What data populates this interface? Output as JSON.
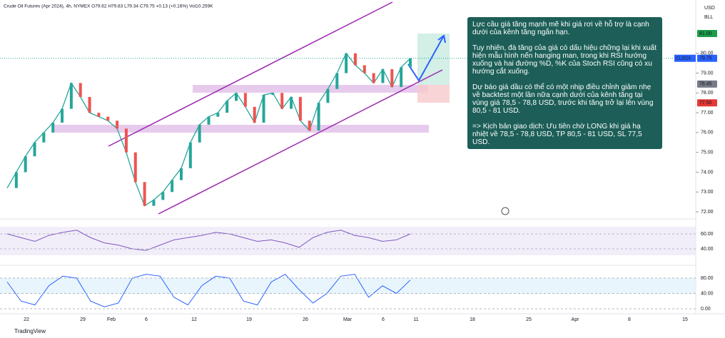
{
  "header": {
    "legend": "Crude Oil Futures (Apr 2024), 4h, NYMEX  O79.62  H79.83  L79.34  C79.75  +0.13 (+0.16%)  Vol10.259K"
  },
  "price_scale": {
    "currency": "USD",
    "unit": "BLL",
    "ticks": [
      {
        "value": 80,
        "label": "80.00"
      },
      {
        "value": 79,
        "label": "79.00"
      },
      {
        "value": 78,
        "label": "78.00"
      },
      {
        "value": 77,
        "label": "77.00"
      },
      {
        "value": 76,
        "label": "76.00"
      },
      {
        "value": 75,
        "label": "75.00"
      },
      {
        "value": 74,
        "label": "74.00"
      },
      {
        "value": 73,
        "label": "73.00"
      },
      {
        "value": 72,
        "label": "72.00"
      }
    ],
    "take_profit": {
      "value": 81,
      "label": "81.00"
    },
    "last": {
      "value": 79.75,
      "label": "79.75",
      "symbol": "CL2024"
    },
    "entry": {
      "value": 78.45,
      "label": "78.45"
    },
    "stop_loss": {
      "value": 77.5,
      "label": "77.50"
    }
  },
  "price": {
    "closes": [
      73.2,
      74.0,
      74.8,
      75.5,
      76.0,
      76.5,
      77.2,
      78.5,
      77.8,
      77.0,
      76.8,
      76.6,
      76.2,
      75.0,
      73.5,
      72.3,
      72.6,
      73.0,
      73.6,
      74.2,
      75.5,
      76.4,
      76.8,
      77.0,
      77.6,
      78.0,
      77.3,
      76.5,
      77.9,
      78.0,
      77.2,
      77.8,
      76.6,
      76.1,
      77.5,
      78.2,
      79.0,
      80.0,
      79.4,
      79.0,
      78.5,
      79.2,
      78.3,
      79.3,
      79.75
    ]
  },
  "rsi": {
    "values": [
      60,
      55,
      50,
      58,
      62,
      65,
      55,
      48,
      45,
      40,
      38,
      45,
      52,
      55,
      58,
      62,
      60,
      55,
      50,
      52,
      48,
      42,
      55,
      62,
      65,
      58,
      55,
      50,
      52,
      60
    ],
    "ticks": [
      {
        "value": 60,
        "label": "60.00"
      },
      {
        "value": 40,
        "label": "40.00"
      }
    ]
  },
  "stoch": {
    "values": [
      70,
      20,
      10,
      60,
      85,
      80,
      20,
      5,
      15,
      80,
      90,
      85,
      30,
      10,
      60,
      85,
      80,
      20,
      10,
      70,
      90,
      50,
      15,
      40,
      85,
      90,
      30,
      60,
      40,
      75
    ],
    "ticks": [
      {
        "value": 80,
        "label": "80.00"
      },
      {
        "value": 40,
        "label": "40.00"
      },
      {
        "value": 0,
        "label": "0.00"
      }
    ]
  },
  "time_axis": [
    "22",
    "29",
    "Feb",
    "6",
    "12",
    "19",
    "26",
    "Mar",
    "6",
    "11",
    "18",
    "25",
    "Apr",
    "8",
    "15"
  ],
  "annotation": [
    "Lực cầu giá tăng mạnh mẽ khi giá rơi về hỗ trợ là cạnh dưới của kênh tăng ngắn hạn.",
    "Tuy nhiên, đà tăng của giá có dấu hiệu chững lại khi xuất hiện mẫu hình nến hanging man, trong khi RSI hướng xuống và hai đường %D, %K của Stoch RSI cũng có xu hướng cắt xuống.",
    "Dự báo giá dầu có thể có một nhịp điều chỉnh giảm nhẹ về backtest một lần nữa cạnh dưới của kênh tăng tại vùng giá 78,5 - 78,8 USD, trước khi tăng trở lại lên vùng 80,5 - 81 USD.",
    "=> Kịch bản giao dịch: Ưu tiên chờ LONG khi giá hạ nhiệt về 78,5 - 78,8 USD, TP 80,5 - 81 USD, SL 77,5 USD."
  ],
  "footer": {
    "brand": "TradingView"
  }
}
